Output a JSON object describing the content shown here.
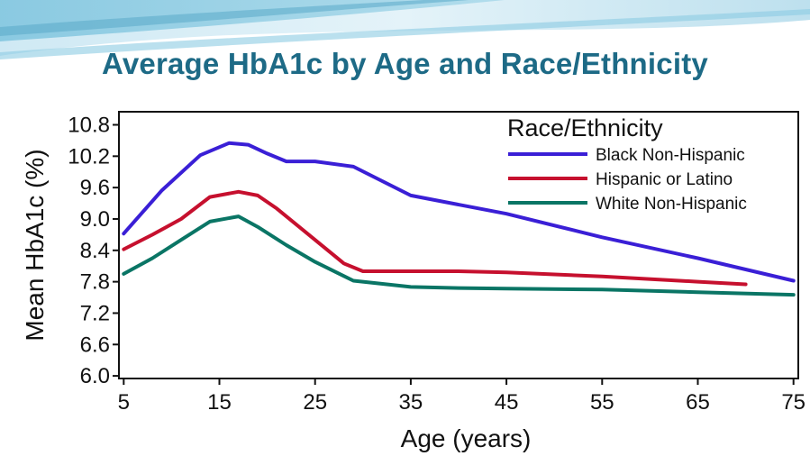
{
  "slide": {
    "title": "Average HbA1c by Age and Race/Ethnicity"
  },
  "colors": {
    "title": "#1d6a86",
    "banner_light": "#d4ecf5",
    "banner_mid": "#8ccbe2"
  },
  "chart_data": {
    "type": "line",
    "title": "",
    "xlabel": "Age (years)",
    "ylabel": "Mean HbA1c (%)",
    "xlim": [
      4.5,
      75.5
    ],
    "ylim": [
      5.95,
      11.05
    ],
    "xticks": [
      5,
      15,
      25,
      35,
      45,
      55,
      65,
      75
    ],
    "xtick_labels": [
      "5",
      "15",
      "25",
      "35",
      "45",
      "55",
      "65",
      "75"
    ],
    "yticks": [
      6.0,
      6.6,
      7.2,
      7.8,
      8.4,
      9.0,
      9.6,
      10.2,
      10.8
    ],
    "ytick_labels": [
      "6.0",
      "6.6",
      "7.2",
      "7.8",
      "8.4",
      "9.0",
      "9.6",
      "10.2",
      "10.8"
    ],
    "grid": false,
    "legend": {
      "title": "Race/Ethnicity",
      "position": "top-right"
    },
    "series": [
      {
        "name": "Black Non-Hispanic",
        "color": "#3a1fd6",
        "x": [
          5,
          9,
          13,
          16,
          18,
          20,
          22,
          25,
          29,
          35,
          45,
          55,
          65,
          75
        ],
        "y": [
          8.72,
          9.55,
          10.22,
          10.45,
          10.42,
          10.25,
          10.1,
          10.1,
          10.0,
          9.45,
          9.1,
          8.65,
          8.25,
          7.82
        ]
      },
      {
        "name": "Hispanic or Latino",
        "color": "#c6102e",
        "x": [
          5,
          8,
          11,
          14,
          17,
          19,
          21,
          25,
          28,
          30,
          35,
          40,
          45,
          55,
          65,
          70
        ],
        "y": [
          8.42,
          8.7,
          9.0,
          9.42,
          9.52,
          9.45,
          9.2,
          8.6,
          8.15,
          8.0,
          8.0,
          8.0,
          7.98,
          7.9,
          7.8,
          7.75
        ]
      },
      {
        "name": "White Non-Hispanic",
        "color": "#0a7565",
        "x": [
          5,
          8,
          11,
          14,
          17,
          19,
          22,
          25,
          29,
          35,
          40,
          45,
          55,
          65,
          75
        ],
        "y": [
          7.95,
          8.25,
          8.6,
          8.95,
          9.05,
          8.85,
          8.5,
          8.18,
          7.82,
          7.7,
          7.68,
          7.67,
          7.65,
          7.6,
          7.55
        ]
      }
    ]
  }
}
